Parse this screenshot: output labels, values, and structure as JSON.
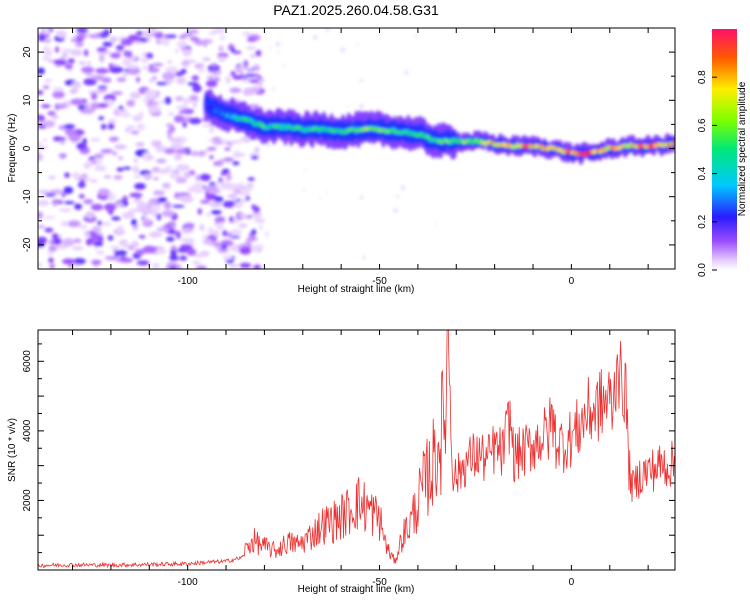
{
  "chart_data": [
    {
      "type": "heatmap",
      "title": "PAZ1.2025.260.04.58.G31",
      "xlabel": "Height of straight line (km)",
      "ylabel": "Frequency (Hz)",
      "xlim": [
        -139,
        27
      ],
      "ylim": [
        -25,
        25
      ],
      "xticks": [
        "-100",
        "-50",
        "0"
      ],
      "yticks": [
        "20",
        "10",
        "0",
        "-10",
        "-20"
      ],
      "grid": false,
      "colormap": "rainbow (magenta-blue-cyan-green-yellow-orange-red)",
      "colorbar": {
        "label": "Normalized spectral amplitude",
        "range": [
          0,
          1.0
        ],
        "ticks": [
          "0.0",
          "0.2",
          "0.4",
          "0.6",
          "0.8"
        ],
        "position": "right"
      },
      "noise_region_x": [
        -139,
        -85
      ],
      "ridge": {
        "x": [
          -95,
          -90,
          -85,
          -80,
          -75,
          -70,
          -65,
          -60,
          -55,
          -50,
          -45,
          -40,
          -35,
          -30,
          -25,
          -20,
          -15,
          -10,
          -5,
          0,
          5,
          10,
          15,
          20,
          27
        ],
        "frequency_hz": [
          9,
          7,
          6,
          4.5,
          4.5,
          4,
          4,
          3.5,
          4,
          4,
          3.5,
          3,
          1.5,
          1.5,
          1.5,
          1,
          0.5,
          0.5,
          0,
          -1,
          -1,
          0,
          0.5,
          0.5,
          1
        ],
        "amplitude": [
          0.25,
          0.35,
          0.5,
          0.55,
          0.5,
          0.55,
          0.5,
          0.55,
          0.6,
          0.65,
          0.55,
          0.5,
          0.55,
          0.6,
          0.7,
          0.8,
          0.85,
          0.85,
          0.85,
          0.9,
          0.95,
          0.85,
          0.85,
          0.9,
          0.85
        ]
      }
    },
    {
      "type": "line",
      "title": "",
      "xlabel": "Height of straight line (km)",
      "ylabel": "SNR (10 * v/v)",
      "xlim": [
        -139,
        27
      ],
      "ylim": [
        0,
        6900
      ],
      "xticks": [
        "-100",
        "-50",
        "0"
      ],
      "yticks": [
        "2000",
        "4000",
        "6000"
      ],
      "grid": false,
      "series": [
        {
          "color": "#ee3030",
          "x": [
            -139,
            -130,
            -120,
            -110,
            -100,
            -95,
            -90,
            -86,
            -83,
            -80,
            -77,
            -74,
            -71,
            -68,
            -65,
            -62,
            -59,
            -56,
            -53,
            -50,
            -48,
            -46,
            -44,
            -42,
            -40,
            -38,
            -36,
            -34,
            -33,
            -32,
            -31,
            -30,
            -28,
            -26,
            -24,
            -22,
            -20,
            -18,
            -16,
            -15,
            -14,
            -12,
            -10,
            -8,
            -6,
            -5,
            -4,
            -2,
            0,
            2,
            4,
            6,
            8,
            10,
            11,
            12,
            13,
            14,
            15,
            16,
            18,
            20,
            22,
            24,
            27
          ],
          "values": [
            130,
            150,
            140,
            160,
            180,
            220,
            250,
            350,
            700,
            550,
            450,
            650,
            600,
            800,
            1050,
            1150,
            1300,
            1600,
            1450,
            1200,
            500,
            200,
            800,
            1100,
            1600,
            2100,
            2500,
            3200,
            3500,
            6800,
            3000,
            2700,
            3100,
            3300,
            3400,
            3200,
            3600,
            3400,
            4500,
            3300,
            3400,
            3500,
            3700,
            3900,
            4000,
            4500,
            3800,
            3700,
            3900,
            4200,
            4600,
            4700,
            4900,
            5000,
            4800,
            6600,
            5200,
            5600,
            3000,
            2400,
            2800,
            2900,
            3000,
            3100,
            3100
          ]
        }
      ]
    }
  ]
}
